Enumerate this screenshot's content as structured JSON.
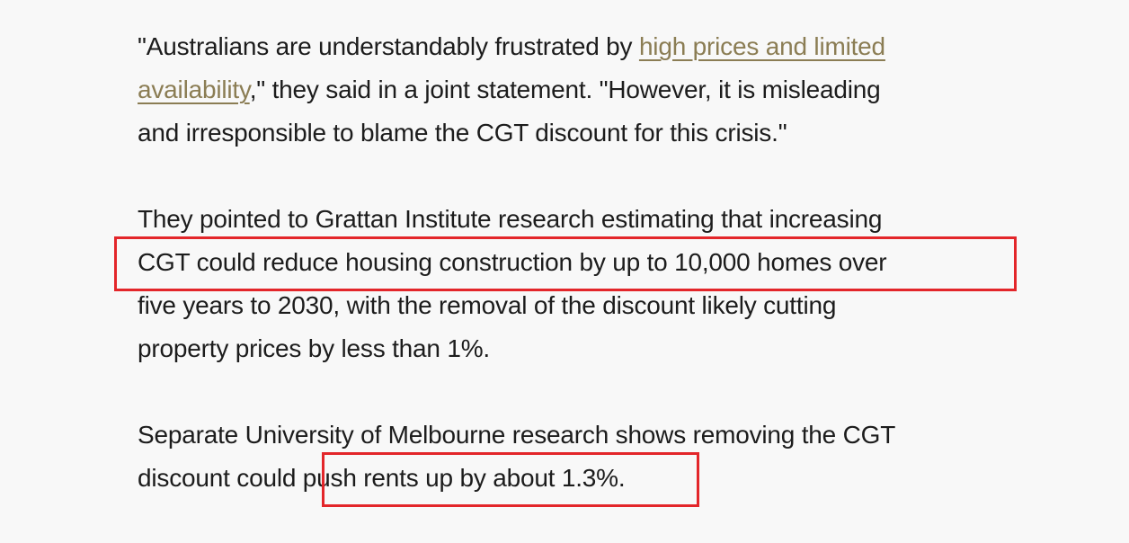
{
  "article": {
    "paragraph1": {
      "line1_text": "\"Australians are understandably frustrated by ",
      "line1_link": "high prices and limited",
      "line2_link": "availability",
      "line2_text": ",\" they said in a joint statement. \"However, it is misleading",
      "line3_text": "and irresponsible to blame the CGT discount for this crisis.\""
    },
    "paragraph2": {
      "line1": "They pointed to Grattan Institute research estimating that increasing",
      "line2": "CGT could reduce housing construction by up to 10,000 homes over",
      "line3": "five years to 2030, with the removal of the discount likely cutting",
      "line4": "property prices by less than 1%."
    },
    "paragraph3": {
      "line1": "Separate University of Melbourne research shows removing the CGT",
      "line2_before": "discount could ",
      "line2_highlight": "push rents up by about 1.3%."
    }
  },
  "colors": {
    "background": "#f8f8f8",
    "text": "#1c1c1c",
    "link": "#8b7d54",
    "highlight_box": "#e3262a"
  }
}
